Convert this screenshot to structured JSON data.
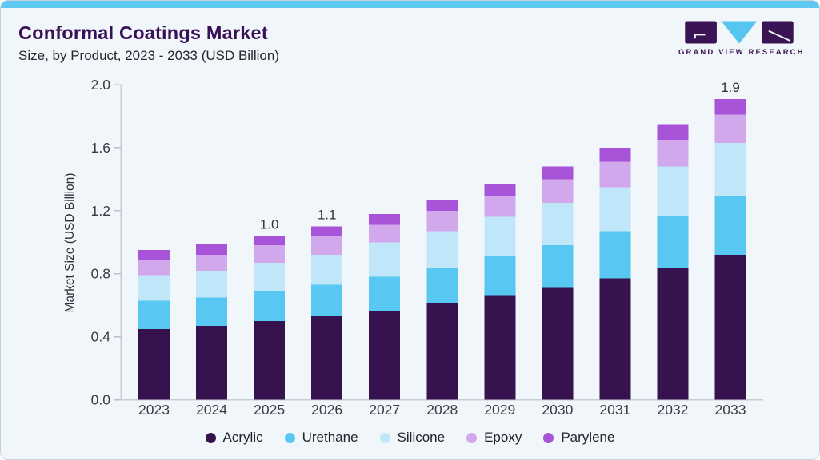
{
  "header": {
    "title": "Conformal Coatings Market",
    "subtitle": "Size, by Product, 2023 - 2033 (USD Billion)",
    "logo_text": "GRAND VIEW RESEARCH"
  },
  "colors": {
    "accent_top_bar": "#5ec9f1",
    "card_background": "#f1f6fa",
    "card_border": "#c9d3dc",
    "title_purple": "#3a1156",
    "logo_purple": "#3a1454",
    "logo_triangle_blue": "#56c5f0",
    "axis_line": "#c8cdd5",
    "tick_mark": "#b9c0ca",
    "axis_text": "#3a3a42"
  },
  "chart_data": {
    "type": "bar",
    "stacked": true,
    "title": "Conformal Coatings Market Size, by Product, 2023 - 2033 (USD Billion)",
    "xlabel": "",
    "ylabel": "Market Size (USD Billion)",
    "ylim": [
      0.0,
      2.0
    ],
    "yticks": [
      0.0,
      0.4,
      0.8,
      1.2,
      1.6,
      2.0
    ],
    "grid": false,
    "legend_position": "bottom",
    "categories": [
      2023,
      2024,
      2025,
      2026,
      2027,
      2028,
      2029,
      2030,
      2031,
      2032,
      2033
    ],
    "series": [
      {
        "name": "Acrylic",
        "color": "#36124e",
        "values": [
          0.45,
          0.47,
          0.5,
          0.53,
          0.56,
          0.61,
          0.66,
          0.71,
          0.77,
          0.84,
          0.92
        ]
      },
      {
        "name": "Urethane",
        "color": "#58c8f3",
        "values": [
          0.18,
          0.18,
          0.19,
          0.2,
          0.22,
          0.23,
          0.25,
          0.27,
          0.3,
          0.33,
          0.37
        ]
      },
      {
        "name": "Silicone",
        "color": "#bfe7f9",
        "values": [
          0.16,
          0.17,
          0.18,
          0.19,
          0.22,
          0.23,
          0.25,
          0.27,
          0.28,
          0.31,
          0.34
        ]
      },
      {
        "name": "Epoxy",
        "color": "#d2a8ec",
        "values": [
          0.1,
          0.1,
          0.11,
          0.12,
          0.11,
          0.13,
          0.13,
          0.15,
          0.16,
          0.17,
          0.18
        ]
      },
      {
        "name": "Parylene",
        "color": "#a854d8",
        "values": [
          0.06,
          0.07,
          0.06,
          0.06,
          0.07,
          0.07,
          0.08,
          0.08,
          0.09,
          0.1,
          0.1
        ]
      }
    ],
    "total_labels": {
      "2025": "1.0",
      "2026": "1.1",
      "2033": "1.9"
    }
  }
}
